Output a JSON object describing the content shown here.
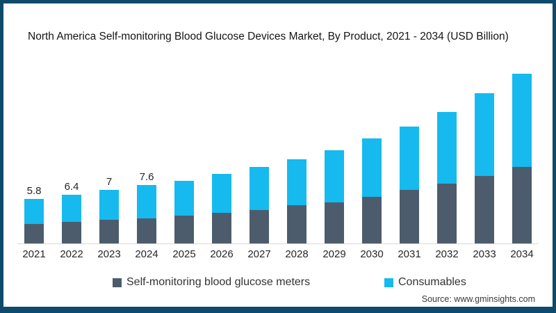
{
  "title": "North America Self-monitoring Blood Glucose Devices Market, By Product, 2021 - 2034 (USD Billion)",
  "source": "Source: www.gminsights.com",
  "legend": {
    "meters": {
      "label": "Self-monitoring blood glucose meters",
      "color": "#4d5c6c"
    },
    "consumables": {
      "label": "Consumables",
      "color": "#16baee"
    }
  },
  "colors": {
    "meters": "#4d5c6c",
    "consumables": "#16baee",
    "frame_border": "#0e4a6b",
    "axis_line": "#d8d8d8",
    "background": "#ffffff"
  },
  "chart_data": {
    "type": "bar",
    "stacked": true,
    "title": "North America Self-monitoring Blood Glucose Devices Market, By Product, 2021 - 2034 (USD Billion)",
    "xlabel": "",
    "ylabel": "USD Billion",
    "ylim": [
      0,
      23
    ],
    "grid": false,
    "legend_position": "bottom",
    "categories": [
      "2021",
      "2022",
      "2023",
      "2024",
      "2025",
      "2026",
      "2027",
      "2028",
      "2029",
      "2030",
      "2031",
      "2032",
      "2033",
      "2034"
    ],
    "series": [
      {
        "name": "Self-monitoring blood glucose meters",
        "color": "#4d5c6c",
        "values": [
          2.5,
          2.8,
          3.1,
          3.3,
          3.6,
          4.0,
          4.4,
          5.0,
          5.4,
          6.1,
          7.0,
          7.8,
          8.8,
          10.0
        ]
      },
      {
        "name": "Consumables",
        "color": "#16baee",
        "values": [
          3.3,
          3.6,
          3.9,
          4.3,
          4.6,
          5.1,
          5.6,
          6.0,
          6.8,
          7.6,
          8.3,
          9.4,
          10.8,
          12.2
        ]
      }
    ],
    "totals": [
      5.8,
      6.4,
      7.0,
      7.6,
      8.2,
      9.1,
      10.0,
      11.0,
      12.2,
      13.7,
      15.3,
      17.2,
      19.6,
      22.2
    ],
    "data_labels": [
      "5.8",
      "6.4",
      "7",
      "7.6",
      "",
      "",
      "",
      "",
      "",
      "",
      "",
      "",
      "",
      ""
    ]
  }
}
